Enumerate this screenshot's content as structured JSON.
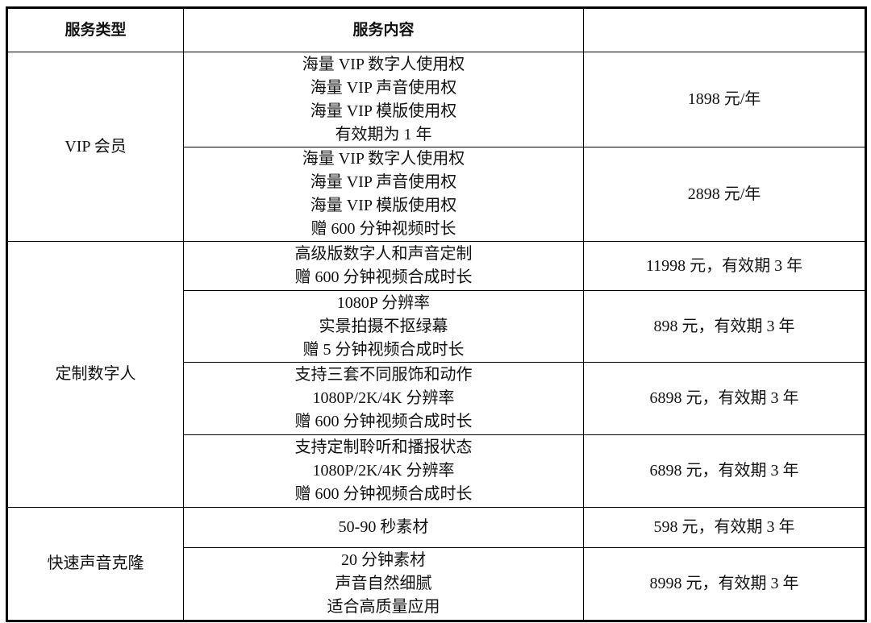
{
  "table": {
    "headers": [
      "服务类型",
      "服务内容",
      ""
    ],
    "groups": [
      {
        "type": "VIP 会员",
        "rows": [
          {
            "content": [
              "海量 VIP 数字人使用权",
              "海量 VIP 声音使用权",
              "海量 VIP 模版使用权",
              "有效期为 1 年"
            ],
            "price": "1898 元/年"
          },
          {
            "content": [
              "海量 VIP 数字人使用权",
              "海量 VIP 声音使用权",
              "海量 VIP 模版使用权",
              "赠 600 分钟视频时长"
            ],
            "price": "2898 元/年"
          }
        ]
      },
      {
        "type": "定制数字人",
        "rows": [
          {
            "content": [
              "高级版数字人和声音定制",
              "赠 600 分钟视频合成时长"
            ],
            "price": "11998 元，有效期 3 年"
          },
          {
            "content": [
              "1080P 分辨率",
              "实景拍摄不抠绿幕",
              "赠 5 分钟视频合成时长"
            ],
            "price": "898 元，有效期 3 年"
          },
          {
            "content": [
              "支持三套不同服饰和动作",
              "1080P/2K/4K 分辨率",
              "赠 600 分钟视频合成时长"
            ],
            "price": "6898 元，有效期 3 年"
          },
          {
            "content": [
              "支持定制聆听和播报状态",
              "1080P/2K/4K 分辨率",
              "赠 600 分钟视频合成时长"
            ],
            "price": "6898 元，有效期 3 年"
          }
        ]
      },
      {
        "type": "快速声音克隆",
        "rows": [
          {
            "content": [
              "50-90 秒素材"
            ],
            "price": "598 元，有效期 3 年"
          },
          {
            "content": [
              "20 分钟素材",
              "声音自然细腻",
              "适合高质量应用"
            ],
            "price": "8998 元，有效期 3 年"
          }
        ]
      }
    ]
  }
}
